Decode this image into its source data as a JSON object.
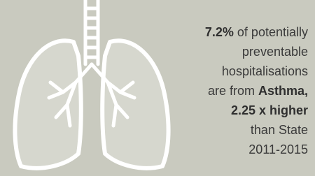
{
  "stat_text": {
    "lines": [
      [
        {
          "text": "7.2%",
          "bold": true
        },
        {
          "text": "of potentially",
          "bold": false
        }
      ],
      [
        {
          "text": "preventable",
          "bold": false
        }
      ],
      [
        {
          "text": "hospitalisations",
          "bold": false
        }
      ],
      [
        {
          "text": "are from",
          "bold": false
        },
        {
          "text": "Asthma,",
          "bold": true
        }
      ],
      [
        {
          "text": "2.25 x higher",
          "bold": true
        }
      ],
      [
        {
          "text": "than State",
          "bold": false
        }
      ],
      [
        {
          "text": "2011-2015",
          "bold": false
        }
      ]
    ]
  }
}
